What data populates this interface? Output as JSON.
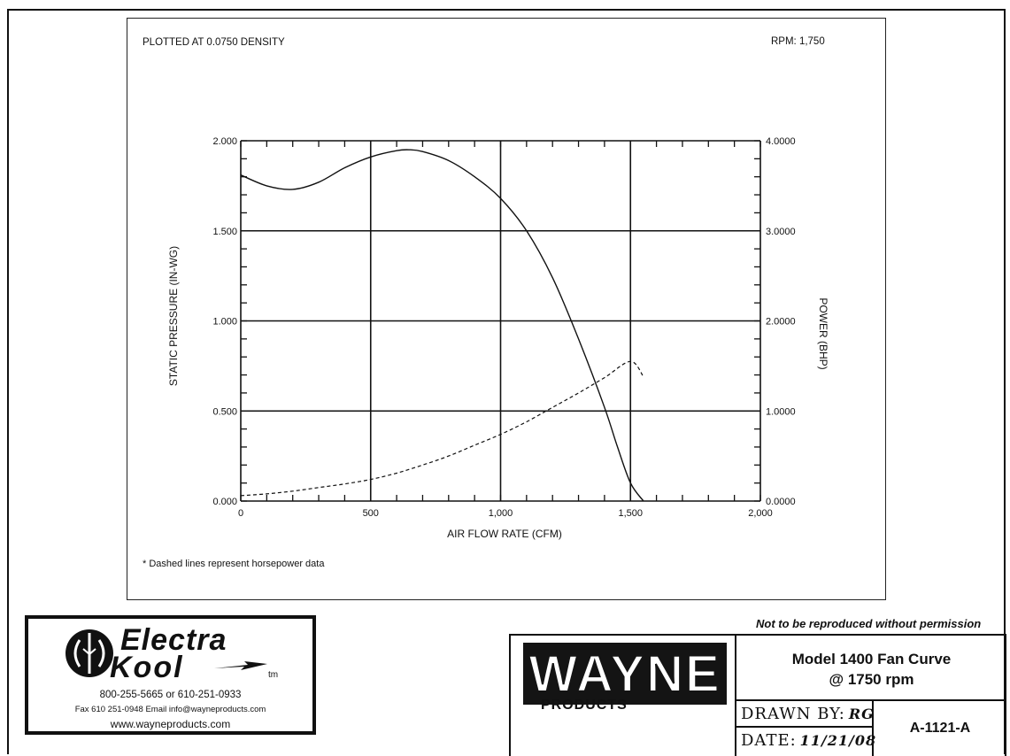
{
  "chart_data": {
    "type": "line",
    "header_left": "PLOTTED AT 0.0750 DENSITY",
    "header_right": "RPM: 1,750",
    "xlabel": "AIR FLOW RATE (CFM)",
    "ylabel": "STATIC PRESSURE (IN-WG)",
    "y2label": "POWER (BHP)",
    "xlim": [
      0,
      2000
    ],
    "ylim": [
      0,
      2.0
    ],
    "y2lim": [
      0,
      4.0
    ],
    "x_ticks": [
      "0",
      "500",
      "1,000",
      "1,500",
      "2,000"
    ],
    "y_ticks": [
      "0.000",
      "0.500",
      "1.000",
      "1.500",
      "2.000"
    ],
    "y2_ticks": [
      "0.0000",
      "1.0000",
      "2.0000",
      "3.0000",
      "4.0000"
    ],
    "grid": true,
    "footnote": "* Dashed lines represent horsepower data",
    "series": [
      {
        "style": "solid",
        "axis": "left",
        "x": [
          0,
          100,
          200,
          300,
          400,
          500,
          600,
          650,
          700,
          800,
          900,
          1000,
          1100,
          1200,
          1300,
          1400,
          1450,
          1500,
          1550
        ],
        "values": [
          1.81,
          1.75,
          1.73,
          1.77,
          1.85,
          1.91,
          1.945,
          1.95,
          1.94,
          1.89,
          1.8,
          1.68,
          1.5,
          1.24,
          0.9,
          0.52,
          0.3,
          0.1,
          0.0
        ]
      },
      {
        "style": "dashed",
        "axis": "right",
        "x": [
          0,
          100,
          200,
          300,
          400,
          500,
          600,
          700,
          800,
          900,
          1000,
          1100,
          1200,
          1300,
          1400,
          1500,
          1550
        ],
        "values": [
          0.06,
          0.08,
          0.11,
          0.15,
          0.19,
          0.24,
          0.31,
          0.4,
          0.5,
          0.62,
          0.74,
          0.88,
          1.04,
          1.2,
          1.37,
          1.55,
          1.38
        ]
      }
    ]
  },
  "branding": {
    "brand_line1": "Electra",
    "brand_line2": "Kool",
    "tm": "tm",
    "phone": "800-255-5665 or 610-251-0933",
    "fax_email": "Fax 610 251-0948   Email info@wayneproducts.com",
    "website": "www.wayneproducts.com"
  },
  "notice": "Not to be reproduced without permission",
  "title_block": {
    "company_logo": "WAYNE",
    "company_sub": "PRODUCTS",
    "title_line1": "Model 1400 Fan Curve",
    "title_line2": "@ 1750 rpm",
    "drawn_by_label": "DRAWN BY:",
    "drawn_by_value": "RG",
    "date_label": "DATE:",
    "date_value": "11/21/08",
    "doc_number": "A-1121-A"
  }
}
